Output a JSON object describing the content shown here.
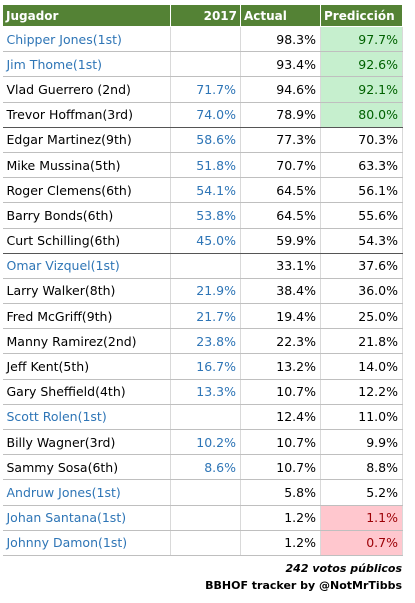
{
  "header": {
    "jugador": "Jugador",
    "y2017": "2017",
    "actual": "Actual",
    "prediccion": "Predicción"
  },
  "rows": [
    {
      "jugador": "Chipper Jones(1st)",
      "actual": "98.3%",
      "prediccion": "97.7%",
      "name_color": "#2e75b6",
      "pred_fill": "#c6efce",
      "pred_color": "#006100"
    },
    {
      "jugador": "Jim Thome(1st)",
      "actual": "93.4%",
      "prediccion": "92.6%",
      "name_color": "#2e75b6",
      "pred_fill": "#c6efce",
      "pred_color": "#006100"
    },
    {
      "jugador": "Vlad Guerrero (2nd)",
      "y2017": "71.7%",
      "actual": "94.6%",
      "prediccion": "92.1%",
      "pred_fill": "#c6efce",
      "pred_color": "#006100"
    },
    {
      "jugador": "Trevor Hoffman(3rd)",
      "y2017": "74.0%",
      "actual": "78.9%",
      "prediccion": "80.0%",
      "pred_fill": "#c6efce",
      "pred_color": "#006100"
    },
    {
      "jugador": "Edgar Martinez(9th)",
      "y2017": "58.6%",
      "actual": "77.3%",
      "prediccion": "70.3%"
    },
    {
      "jugador": "Mike Mussina(5th)",
      "y2017": "51.8%",
      "actual": "70.7%",
      "prediccion": "63.3%"
    },
    {
      "jugador": "Roger Clemens(6th)",
      "y2017": "54.1%",
      "actual": "64.5%",
      "prediccion": "56.1%"
    },
    {
      "jugador": "Barry Bonds(6th)",
      "y2017": "53.8%",
      "actual": "64.5%",
      "prediccion": "55.6%"
    },
    {
      "jugador": "Curt Schilling(6th)",
      "y2017": "45.0%",
      "actual": "59.9%",
      "prediccion": "54.3%"
    },
    {
      "jugador": "Omar Vizquel(1st)",
      "actual": "33.1%",
      "prediccion": "37.6%",
      "name_color": "#2e75b6"
    },
    {
      "jugador": "Larry Walker(8th)",
      "y2017": "21.9%",
      "actual": "38.4%",
      "prediccion": "36.0%"
    },
    {
      "jugador": "Fred McGriff(9th)",
      "y2017": "21.7%",
      "actual": "19.4%",
      "prediccion": "25.0%"
    },
    {
      "jugador": "Manny Ramirez(2nd)",
      "y2017": "23.8%",
      "actual": "22.3%",
      "prediccion": "21.8%"
    },
    {
      "jugador": "Jeff Kent(5th)",
      "y2017": "16.7%",
      "actual": "13.2%",
      "prediccion": "14.0%"
    },
    {
      "jugador": "Gary Sheffield(4th)",
      "y2017": "13.3%",
      "actual": "10.7%",
      "prediccion": "12.2%"
    },
    {
      "jugador": "Scott Rolen(1st)",
      "actual": "12.4%",
      "prediccion": "11.0%",
      "name_color": "#2e75b6"
    },
    {
      "jugador": "Billy Wagner(3rd)",
      "y2017": "10.2%",
      "actual": "10.7%",
      "prediccion": "9.9%"
    },
    {
      "jugador": "Sammy Sosa(6th)",
      "y2017": "8.6%",
      "actual": "10.7%",
      "prediccion": "8.8%"
    },
    {
      "jugador": "Andruw Jones(1st)",
      "actual": "5.8%",
      "prediccion": "5.2%",
      "name_color": "#2e75b6"
    },
    {
      "jugador": "Johan Santana(1st)",
      "actual": "1.2%",
      "prediccion": "1.1%",
      "name_color": "#2e75b6",
      "pred_fill": "#ffc7ce",
      "pred_color": "#9c0006"
    },
    {
      "jugador": "Johnny Damon(1st)",
      "actual": "1.2%",
      "prediccion": "0.7%",
      "name_color": "#2e75b6",
      "pred_fill": "#ffc7ce",
      "pred_color": "#9c0006"
    }
  ],
  "footer": {
    "line1": "242 votos públicos",
    "line2": "BBHOF tracker by @NotMrTibbs"
  }
}
